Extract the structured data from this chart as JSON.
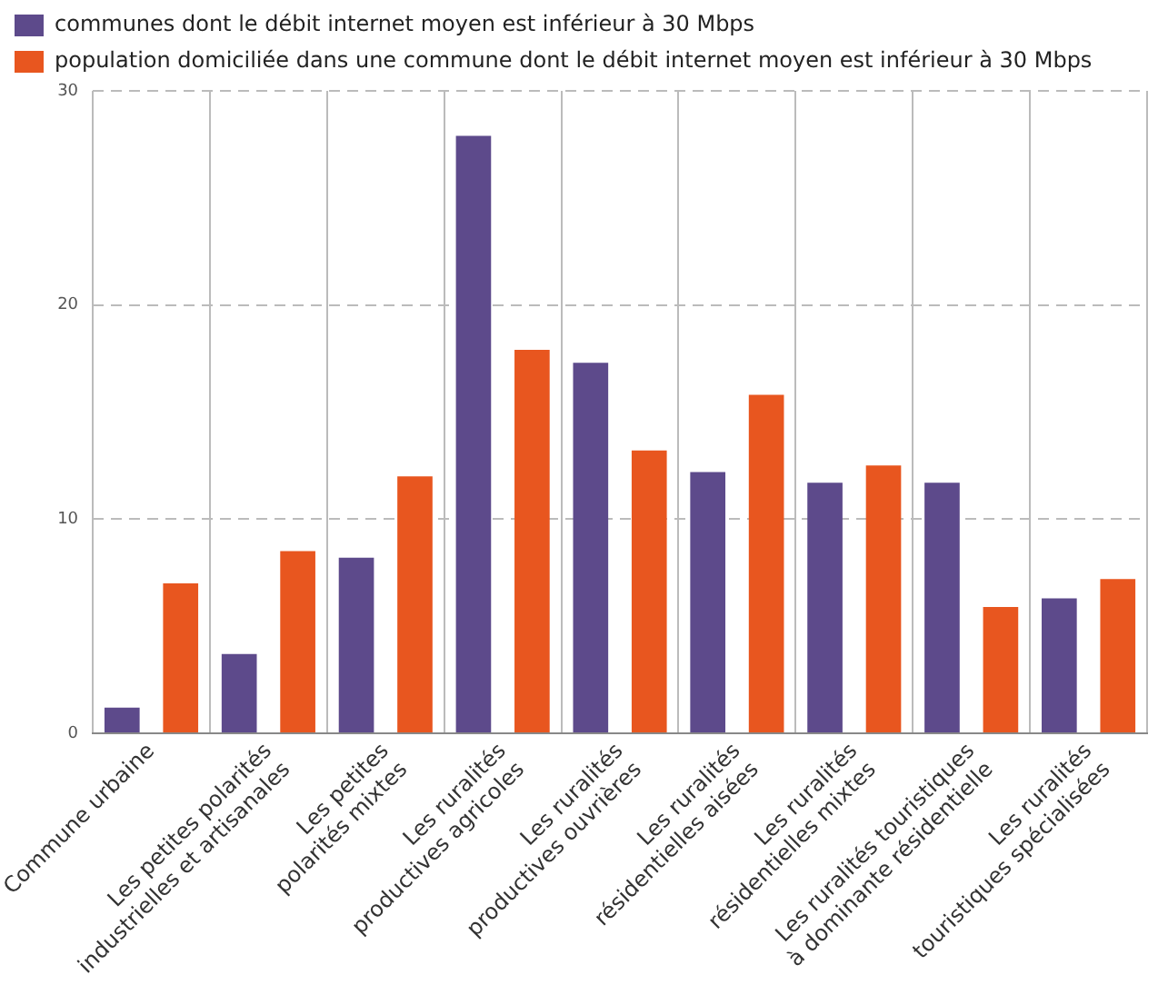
{
  "chart_data": {
    "type": "bar",
    "categories": [
      "Commune urbaine",
      "Les petites polarités\nindustrielles et artisanales",
      "Les petites\npolarités mixtes",
      "Les ruralités\nproductives agricoles",
      "Les ruralités\nproductives ouvrières",
      "Les ruralités\nrésidentielles aisées",
      "Les ruralités\nrésidentielles mixtes",
      "Les ruralités touristiques\nà dominante résidentielle",
      "Les ruralités\ntouristiques spécialisées"
    ],
    "series": [
      {
        "name": "communes dont le débit internet moyen est inférieur à 30 Mbps",
        "color": "#5d4a8b",
        "values": [
          1.2,
          3.7,
          8.2,
          27.9,
          17.3,
          12.2,
          11.7,
          11.7,
          6.3
        ]
      },
      {
        "name": "population domiciliée dans une commune dont le débit internet moyen est inférieur à 30 Mbps",
        "color": "#e8561f",
        "values": [
          7.0,
          8.5,
          12.0,
          17.9,
          13.2,
          15.8,
          12.5,
          5.9,
          7.2
        ]
      }
    ],
    "ylim": [
      0,
      30
    ],
    "yticks": [
      0,
      10,
      20,
      30
    ],
    "grid": true,
    "line_style": "dashed",
    "legend": "top left"
  }
}
